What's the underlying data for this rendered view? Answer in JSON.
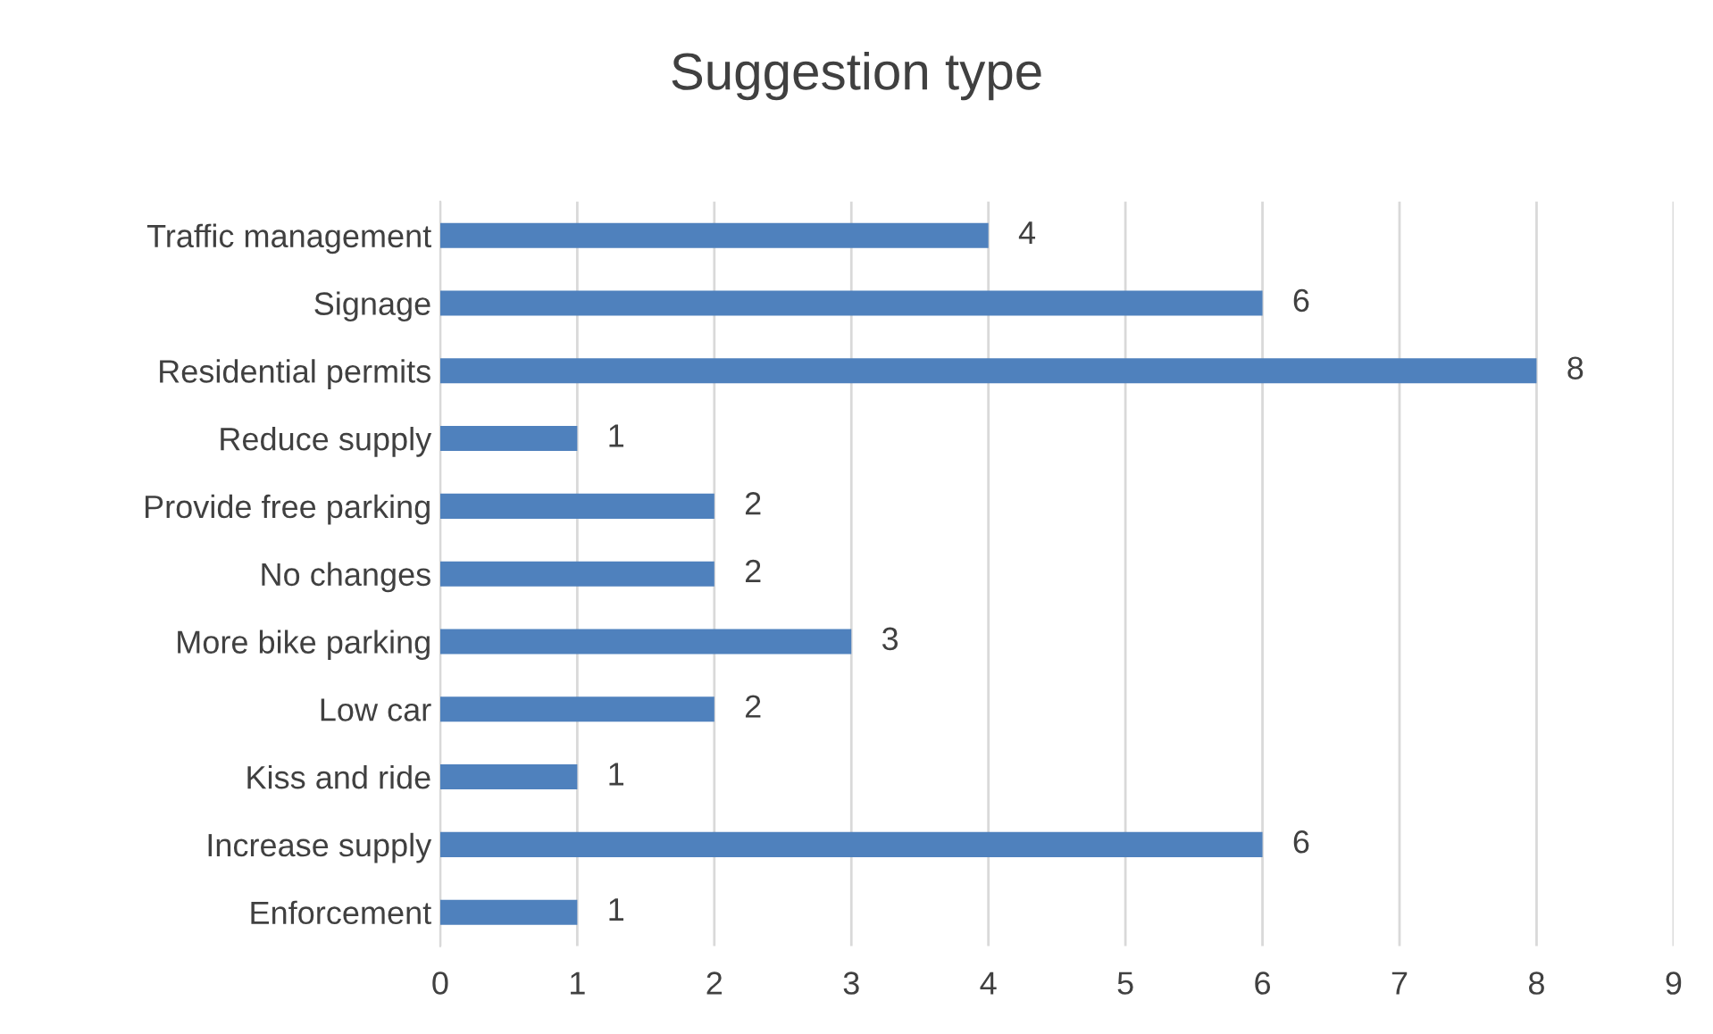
{
  "chart_data": {
    "type": "bar",
    "orientation": "horizontal",
    "title": "Suggestion type",
    "categories": [
      "Traffic management",
      "Signage",
      "Residential permits",
      "Reduce supply",
      "Provide free parking",
      "No changes",
      "More bike parking",
      "Low car",
      "Kiss and ride",
      "Increase supply",
      "Enforcement"
    ],
    "values": [
      4,
      6,
      8,
      1,
      2,
      2,
      3,
      2,
      1,
      6,
      1
    ],
    "color": "#4f81bd",
    "xlim": [
      0,
      9
    ],
    "xticks": [
      0,
      1,
      2,
      3,
      4,
      5,
      6,
      7,
      8,
      9
    ],
    "grid": "x",
    "data_labels": true
  }
}
